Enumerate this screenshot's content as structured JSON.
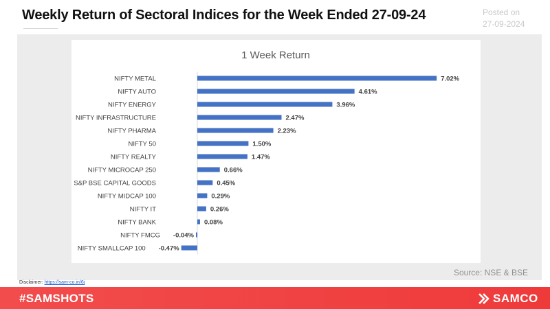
{
  "header": {
    "title": "Weekly Return of Sectoral Indices for the Week Ended 27-09-24",
    "posted_label": "Posted on",
    "posted_date": "27-09-2024"
  },
  "source": "Source: NSE & BSE",
  "disclaimer": {
    "label": "Disclaimer:",
    "link_text": "https://sam-co.in/6j"
  },
  "footer": {
    "hashtag": "#SAMSHOTS",
    "brand": "SAMCO",
    "background_color": "#ef3b3b"
  },
  "chart_data": {
    "type": "bar",
    "orientation": "horizontal",
    "title": "1 Week Return",
    "xlabel": "",
    "ylabel": "",
    "bar_color": "#4472c4",
    "grid": false,
    "legend": "none",
    "categories": [
      "NIFTY METAL",
      "NIFTY AUTO",
      "NIFTY ENERGY",
      "NIFTY INFRASTRUCTURE",
      "NIFTY PHARMA",
      "NIFTY 50",
      "NIFTY REALTY",
      "NIFTY MICROCAP 250",
      "S&P BSE CAPITAL GOODS",
      "NIFTY MIDCAP 100",
      "NIFTY IT",
      "NIFTY BANK",
      "NIFTY FMCG",
      "NIFTY SMALLCAP 100"
    ],
    "values": [
      7.02,
      4.61,
      3.96,
      2.47,
      2.23,
      1.5,
      1.47,
      0.66,
      0.45,
      0.29,
      0.26,
      0.08,
      -0.04,
      -0.47
    ],
    "data_labels": [
      "7.02%",
      "4.61%",
      "3.96%",
      "2.47%",
      "2.23%",
      "1.50%",
      "1.47%",
      "0.66%",
      "0.45%",
      "0.29%",
      "0.26%",
      "0.08%",
      "-0.04%",
      "-0.47%"
    ]
  }
}
